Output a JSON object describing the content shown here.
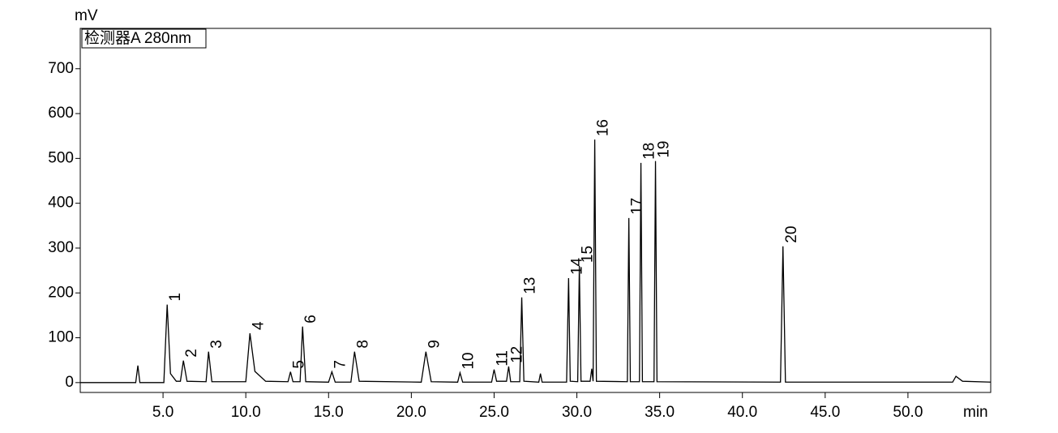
{
  "chart_data": {
    "type": "line",
    "y_unit": "mV",
    "x_unit": "min",
    "detector": "检测器A 280nm",
    "xlim": [
      0,
      55
    ],
    "ylim": [
      -22,
      790
    ],
    "xticks": [
      {
        "value": 5,
        "label": "5.0"
      },
      {
        "value": 10,
        "label": "10.0"
      },
      {
        "value": 15,
        "label": "15.0"
      },
      {
        "value": 20,
        "label": "20.0"
      },
      {
        "value": 25,
        "label": "25.0"
      },
      {
        "value": 30,
        "label": "30.0"
      },
      {
        "value": 35,
        "label": "35.0"
      },
      {
        "value": 40,
        "label": "40.0"
      },
      {
        "value": 45,
        "label": "45.0"
      },
      {
        "value": 50,
        "label": "50.0"
      }
    ],
    "yticks": [
      0,
      100,
      200,
      300,
      400,
      500,
      600,
      700
    ],
    "series": [
      {
        "color": "#000000",
        "x": [
          0,
          3.35,
          3.48,
          3.6,
          5.05,
          5.25,
          5.45,
          5.8,
          6.05,
          6.23,
          6.45,
          7.6,
          7.75,
          7.95,
          10.0,
          10.25,
          10.55,
          11.2,
          12.55,
          12.7,
          12.85,
          13.28,
          13.43,
          13.62,
          15.0,
          15.2,
          15.4,
          16.35,
          16.57,
          16.85,
          20.6,
          20.88,
          21.2,
          22.8,
          22.94,
          23.1,
          24.85,
          25.0,
          25.15,
          25.75,
          25.88,
          26.0,
          26.55,
          26.67,
          26.8,
          27.7,
          27.8,
          27.9,
          29.38,
          29.5,
          29.6,
          30.05,
          30.15,
          30.25,
          30.8,
          30.9,
          30.98,
          31.08,
          31.18,
          33.05,
          33.14,
          33.23,
          33.78,
          33.87,
          33.96,
          34.66,
          34.75,
          34.84,
          42.3,
          42.45,
          42.6,
          52.7,
          52.9,
          53.3,
          55
        ],
        "values": [
          0,
          0,
          38,
          0,
          0,
          174,
          20,
          3,
          3,
          49,
          3,
          2,
          69,
          2,
          2,
          110,
          25,
          3,
          2,
          24,
          2,
          2,
          125,
          2,
          1,
          24,
          1,
          1,
          69,
          3,
          1,
          69,
          2,
          1,
          22,
          1,
          1,
          29,
          3,
          3,
          36,
          2,
          2,
          190,
          3,
          1,
          20,
          1,
          1,
          233,
          3,
          2,
          260,
          3,
          3,
          31,
          3,
          542,
          3,
          2,
          367,
          2,
          2,
          490,
          2,
          2,
          494,
          2,
          1,
          304,
          1,
          1,
          14,
          3,
          1
        ]
      }
    ],
    "peaks": [
      {
        "label": "1",
        "x": 5.25,
        "y": 174
      },
      {
        "label": "2",
        "x": 6.23,
        "y": 49
      },
      {
        "label": "3",
        "x": 7.75,
        "y": 69
      },
      {
        "label": "4",
        "x": 10.25,
        "y": 110
      },
      {
        "label": "5",
        "x": 12.7,
        "y": 24
      },
      {
        "label": "6",
        "x": 13.43,
        "y": 125
      },
      {
        "label": "7",
        "x": 15.2,
        "y": 24
      },
      {
        "label": "8",
        "x": 16.57,
        "y": 69
      },
      {
        "label": "9",
        "x": 20.88,
        "y": 69
      },
      {
        "label": "10",
        "x": 22.94,
        "y": 22
      },
      {
        "label": "11",
        "x": 25.0,
        "y": 29
      },
      {
        "label": "12",
        "x": 25.88,
        "y": 36
      },
      {
        "label": "13",
        "x": 26.67,
        "y": 190
      },
      {
        "label": "14",
        "x": 29.5,
        "y": 233
      },
      {
        "label": "15",
        "x": 30.15,
        "y": 260
      },
      {
        "label": "16",
        "x": 31.08,
        "y": 542
      },
      {
        "label": "17",
        "x": 33.14,
        "y": 367
      },
      {
        "label": "18",
        "x": 33.87,
        "y": 490
      },
      {
        "label": "19",
        "x": 34.75,
        "y": 494
      },
      {
        "label": "20",
        "x": 42.45,
        "y": 304
      }
    ]
  }
}
